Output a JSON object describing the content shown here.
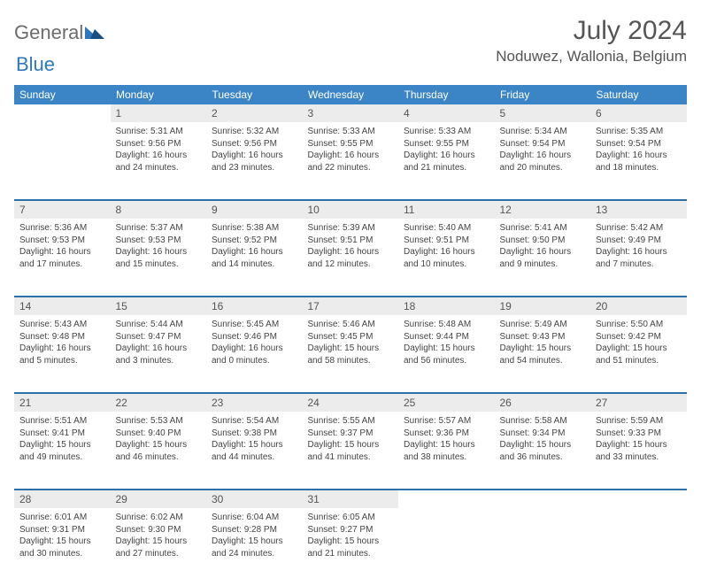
{
  "brand": {
    "part1": "General",
    "part2": "Blue"
  },
  "title": "July 2024",
  "location": "Noduwez, Wallonia, Belgium",
  "colors": {
    "header_bg": "#3b85c6",
    "header_text": "#ffffff",
    "daynum_bg": "#ececec",
    "week_divider": "#2f6fa8",
    "body_text": "#444444",
    "brand_gray": "#6c6c6c",
    "brand_blue": "#2f78bd"
  },
  "weekdays": [
    "Sunday",
    "Monday",
    "Tuesday",
    "Wednesday",
    "Thursday",
    "Friday",
    "Saturday"
  ],
  "weeks": [
    {
      "nums": [
        "",
        "1",
        "2",
        "3",
        "4",
        "5",
        "6"
      ],
      "cells": [
        null,
        {
          "sr": "Sunrise: 5:31 AM",
          "ss": "Sunset: 9:56 PM",
          "dl": "Daylight: 16 hours and 24 minutes."
        },
        {
          "sr": "Sunrise: 5:32 AM",
          "ss": "Sunset: 9:56 PM",
          "dl": "Daylight: 16 hours and 23 minutes."
        },
        {
          "sr": "Sunrise: 5:33 AM",
          "ss": "Sunset: 9:55 PM",
          "dl": "Daylight: 16 hours and 22 minutes."
        },
        {
          "sr": "Sunrise: 5:33 AM",
          "ss": "Sunset: 9:55 PM",
          "dl": "Daylight: 16 hours and 21 minutes."
        },
        {
          "sr": "Sunrise: 5:34 AM",
          "ss": "Sunset: 9:54 PM",
          "dl": "Daylight: 16 hours and 20 minutes."
        },
        {
          "sr": "Sunrise: 5:35 AM",
          "ss": "Sunset: 9:54 PM",
          "dl": "Daylight: 16 hours and 18 minutes."
        }
      ]
    },
    {
      "nums": [
        "7",
        "8",
        "9",
        "10",
        "11",
        "12",
        "13"
      ],
      "cells": [
        {
          "sr": "Sunrise: 5:36 AM",
          "ss": "Sunset: 9:53 PM",
          "dl": "Daylight: 16 hours and 17 minutes."
        },
        {
          "sr": "Sunrise: 5:37 AM",
          "ss": "Sunset: 9:53 PM",
          "dl": "Daylight: 16 hours and 15 minutes."
        },
        {
          "sr": "Sunrise: 5:38 AM",
          "ss": "Sunset: 9:52 PM",
          "dl": "Daylight: 16 hours and 14 minutes."
        },
        {
          "sr": "Sunrise: 5:39 AM",
          "ss": "Sunset: 9:51 PM",
          "dl": "Daylight: 16 hours and 12 minutes."
        },
        {
          "sr": "Sunrise: 5:40 AM",
          "ss": "Sunset: 9:51 PM",
          "dl": "Daylight: 16 hours and 10 minutes."
        },
        {
          "sr": "Sunrise: 5:41 AM",
          "ss": "Sunset: 9:50 PM",
          "dl": "Daylight: 16 hours and 9 minutes."
        },
        {
          "sr": "Sunrise: 5:42 AM",
          "ss": "Sunset: 9:49 PM",
          "dl": "Daylight: 16 hours and 7 minutes."
        }
      ]
    },
    {
      "nums": [
        "14",
        "15",
        "16",
        "17",
        "18",
        "19",
        "20"
      ],
      "cells": [
        {
          "sr": "Sunrise: 5:43 AM",
          "ss": "Sunset: 9:48 PM",
          "dl": "Daylight: 16 hours and 5 minutes."
        },
        {
          "sr": "Sunrise: 5:44 AM",
          "ss": "Sunset: 9:47 PM",
          "dl": "Daylight: 16 hours and 3 minutes."
        },
        {
          "sr": "Sunrise: 5:45 AM",
          "ss": "Sunset: 9:46 PM",
          "dl": "Daylight: 16 hours and 0 minutes."
        },
        {
          "sr": "Sunrise: 5:46 AM",
          "ss": "Sunset: 9:45 PM",
          "dl": "Daylight: 15 hours and 58 minutes."
        },
        {
          "sr": "Sunrise: 5:48 AM",
          "ss": "Sunset: 9:44 PM",
          "dl": "Daylight: 15 hours and 56 minutes."
        },
        {
          "sr": "Sunrise: 5:49 AM",
          "ss": "Sunset: 9:43 PM",
          "dl": "Daylight: 15 hours and 54 minutes."
        },
        {
          "sr": "Sunrise: 5:50 AM",
          "ss": "Sunset: 9:42 PM",
          "dl": "Daylight: 15 hours and 51 minutes."
        }
      ]
    },
    {
      "nums": [
        "21",
        "22",
        "23",
        "24",
        "25",
        "26",
        "27"
      ],
      "cells": [
        {
          "sr": "Sunrise: 5:51 AM",
          "ss": "Sunset: 9:41 PM",
          "dl": "Daylight: 15 hours and 49 minutes."
        },
        {
          "sr": "Sunrise: 5:53 AM",
          "ss": "Sunset: 9:40 PM",
          "dl": "Daylight: 15 hours and 46 minutes."
        },
        {
          "sr": "Sunrise: 5:54 AM",
          "ss": "Sunset: 9:38 PM",
          "dl": "Daylight: 15 hours and 44 minutes."
        },
        {
          "sr": "Sunrise: 5:55 AM",
          "ss": "Sunset: 9:37 PM",
          "dl": "Daylight: 15 hours and 41 minutes."
        },
        {
          "sr": "Sunrise: 5:57 AM",
          "ss": "Sunset: 9:36 PM",
          "dl": "Daylight: 15 hours and 38 minutes."
        },
        {
          "sr": "Sunrise: 5:58 AM",
          "ss": "Sunset: 9:34 PM",
          "dl": "Daylight: 15 hours and 36 minutes."
        },
        {
          "sr": "Sunrise: 5:59 AM",
          "ss": "Sunset: 9:33 PM",
          "dl": "Daylight: 15 hours and 33 minutes."
        }
      ]
    },
    {
      "nums": [
        "28",
        "29",
        "30",
        "31",
        "",
        "",
        ""
      ],
      "cells": [
        {
          "sr": "Sunrise: 6:01 AM",
          "ss": "Sunset: 9:31 PM",
          "dl": "Daylight: 15 hours and 30 minutes."
        },
        {
          "sr": "Sunrise: 6:02 AM",
          "ss": "Sunset: 9:30 PM",
          "dl": "Daylight: 15 hours and 27 minutes."
        },
        {
          "sr": "Sunrise: 6:04 AM",
          "ss": "Sunset: 9:28 PM",
          "dl": "Daylight: 15 hours and 24 minutes."
        },
        {
          "sr": "Sunrise: 6:05 AM",
          "ss": "Sunset: 9:27 PM",
          "dl": "Daylight: 15 hours and 21 minutes."
        },
        null,
        null,
        null
      ]
    }
  ]
}
